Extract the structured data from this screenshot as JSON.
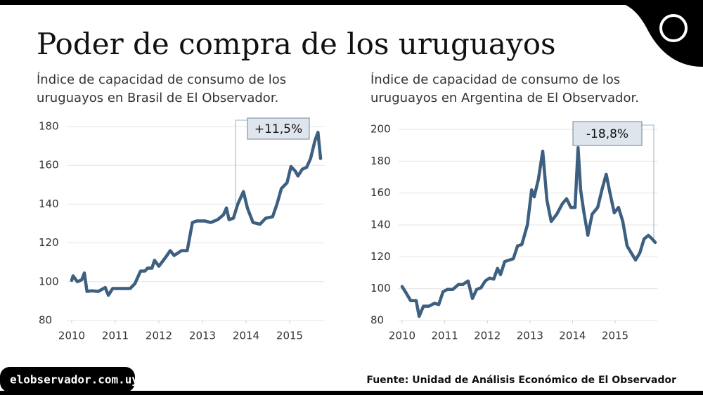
{
  "header": {
    "title": "Poder de compra de los uruguayos"
  },
  "footer": {
    "site": "elobservador.com.uy",
    "source": "Fuente: Unidad de Análisis Económico de El Observador"
  },
  "chart_data": [
    {
      "type": "line",
      "subtitle": [
        "Índice de capacidad de consumo de los",
        "uruguayos en Brasil de El Observador."
      ],
      "annotation": "+11,5%",
      "xlim": [
        2010,
        2015.8
      ],
      "xticks": [
        2010,
        2011,
        2012,
        2013,
        2014,
        2015
      ],
      "ylim": [
        80,
        180
      ],
      "yticks": [
        80,
        100,
        120,
        140,
        160,
        180
      ],
      "grid": true,
      "x": [
        2010,
        2010.03,
        2010.13,
        2010.23,
        2010.29,
        2010.35,
        2010.45,
        2010.61,
        2010.77,
        2010.84,
        2010.94,
        2011.1,
        2011.34,
        2011.45,
        2011.58,
        2011.68,
        2011.74,
        2011.84,
        2011.9,
        2012.0,
        2012.16,
        2012.26,
        2012.35,
        2012.52,
        2012.65,
        2012.77,
        2012.87,
        2013.06,
        2013.19,
        2013.35,
        2013.48,
        2013.55,
        2013.61,
        2013.71,
        2013.81,
        2013.94,
        2014.03,
        2014.16,
        2014.32,
        2014.45,
        2014.61,
        2014.71,
        2014.81,
        2014.94,
        2015.03,
        2015.13,
        2015.19,
        2015.29,
        2015.39,
        2015.48,
        2015.58,
        2015.65,
        2015.71
      ],
      "series": [
        {
          "color": "#3d5f80",
          "values": [
            100.7,
            103,
            100,
            101,
            104.5,
            95,
            95.3,
            95,
            97,
            93,
            96.5,
            96.5,
            96.5,
            99,
            105.5,
            105.5,
            107,
            107,
            111,
            108,
            112.7,
            116,
            113.5,
            116,
            116,
            130.5,
            131.3,
            131.3,
            130.5,
            132,
            134.5,
            138,
            132,
            132.7,
            140,
            146.5,
            138,
            130.5,
            129.6,
            132.7,
            133.5,
            140,
            148,
            151,
            159.4,
            157,
            154.5,
            158,
            159,
            163.5,
            172.7,
            177,
            163.5
          ]
        }
      ]
    },
    {
      "type": "line",
      "subtitle": [
        "Índice de capacidad de consumo de los",
        "uruguayos en Argentina de El Observador."
      ],
      "annotation": "-18,8%",
      "xlim": [
        2010,
        2016
      ],
      "xticks": [
        2010,
        2011,
        2012,
        2013,
        2014,
        2015
      ],
      "ylim": [
        80,
        200
      ],
      "yticks": [
        80,
        100,
        120,
        140,
        160,
        180,
        200
      ],
      "grid": true,
      "x": [
        2010,
        2010.1,
        2010.2,
        2010.33,
        2010.4,
        2010.5,
        2010.63,
        2010.76,
        2010.86,
        2010.96,
        2011.06,
        2011.19,
        2011.32,
        2011.42,
        2011.55,
        2011.65,
        2011.75,
        2011.85,
        2011.95,
        2012.05,
        2012.15,
        2012.24,
        2012.31,
        2012.41,
        2012.51,
        2012.61,
        2012.71,
        2012.81,
        2012.94,
        2013.04,
        2013.1,
        2013.2,
        2013.3,
        2013.4,
        2013.5,
        2013.63,
        2013.76,
        2013.86,
        2013.96,
        2014.06,
        2014.13,
        2014.19,
        2014.26,
        2014.36,
        2014.46,
        2014.59,
        2014.69,
        2014.79,
        2014.88,
        2014.98,
        2015.08,
        2015.18,
        2015.28,
        2015.38,
        2015.48,
        2015.58,
        2015.68,
        2015.78,
        2015.87,
        2015.94
      ],
      "series": [
        {
          "color": "#3d5f80",
          "values": [
            101.3,
            97,
            92.5,
            92.5,
            82.6,
            89,
            89,
            90.8,
            90,
            98,
            99.5,
            99.5,
            102.6,
            102.6,
            104.8,
            93.8,
            99.5,
            100.5,
            104.8,
            106.6,
            106,
            112.7,
            108.8,
            117,
            117.9,
            118.8,
            126.8,
            127.7,
            140,
            162,
            157.6,
            168.7,
            186.3,
            155.5,
            142.2,
            146.7,
            153.3,
            156.4,
            151,
            151,
            188.5,
            162,
            149,
            133.5,
            146.7,
            151,
            162,
            171.8,
            160,
            147.6,
            151,
            142.2,
            126.8,
            122.4,
            118,
            122.4,
            131.2,
            133.4,
            131.2,
            129
          ]
        }
      ]
    }
  ]
}
